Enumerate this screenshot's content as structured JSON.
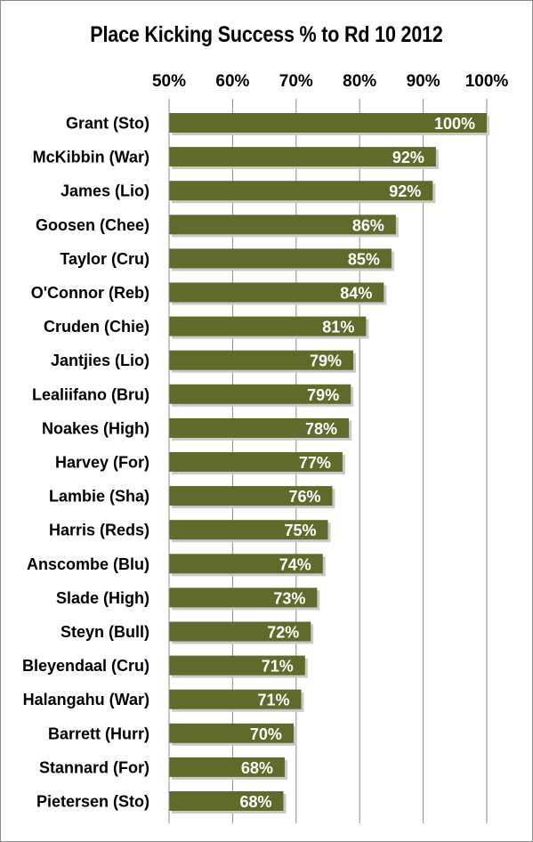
{
  "chart_data": {
    "type": "bar",
    "orientation": "horizontal",
    "title": "Place Kicking Success % to Rd 10 2012",
    "xlabel": "",
    "ylabel": "",
    "xlim": [
      50,
      100
    ],
    "x_ticks": [
      "50%",
      "60%",
      "70%",
      "80%",
      "90%",
      "100%"
    ],
    "x_tick_values": [
      50,
      60,
      70,
      80,
      90,
      100
    ],
    "x_axis_position": "top",
    "grid": true,
    "legend": "none",
    "bar_color": "#5f6b2a",
    "categories": [
      "Grant (Sto)",
      "McKibbin (War)",
      "James (Lio)",
      "Goosen (Chee)",
      "Taylor (Cru)",
      "O'Connor (Reb)",
      "Cruden (Chie)",
      "Jantjies (Lio)",
      "Lealiifano (Bru)",
      "Noakes (High)",
      "Harvey (For)",
      "Lambie (Sha)",
      "Harris (Reds)",
      "Anscombe (Blu)",
      "Slade (High)",
      "Steyn (Bull)",
      "Bleyendaal (Cru)",
      "Halangahu (War)",
      "Barrett (Hurr)",
      "Stannard (For)",
      "Pietersen (Sto)"
    ],
    "values": [
      100,
      92,
      91.5,
      85.7,
      85,
      83.8,
      81,
      79,
      78.6,
      78.3,
      77.3,
      75.7,
      75,
      74.2,
      73.3,
      72.3,
      71.4,
      70.8,
      69.6,
      68.2,
      68
    ],
    "data_labels": [
      "100%",
      "92%",
      "92%",
      "86%",
      "85%",
      "84%",
      "81%",
      "79%",
      "79%",
      "78%",
      "77%",
      "76%",
      "75%",
      "74%",
      "73%",
      "72%",
      "71%",
      "71%",
      "70%",
      "68%",
      "68%"
    ]
  }
}
